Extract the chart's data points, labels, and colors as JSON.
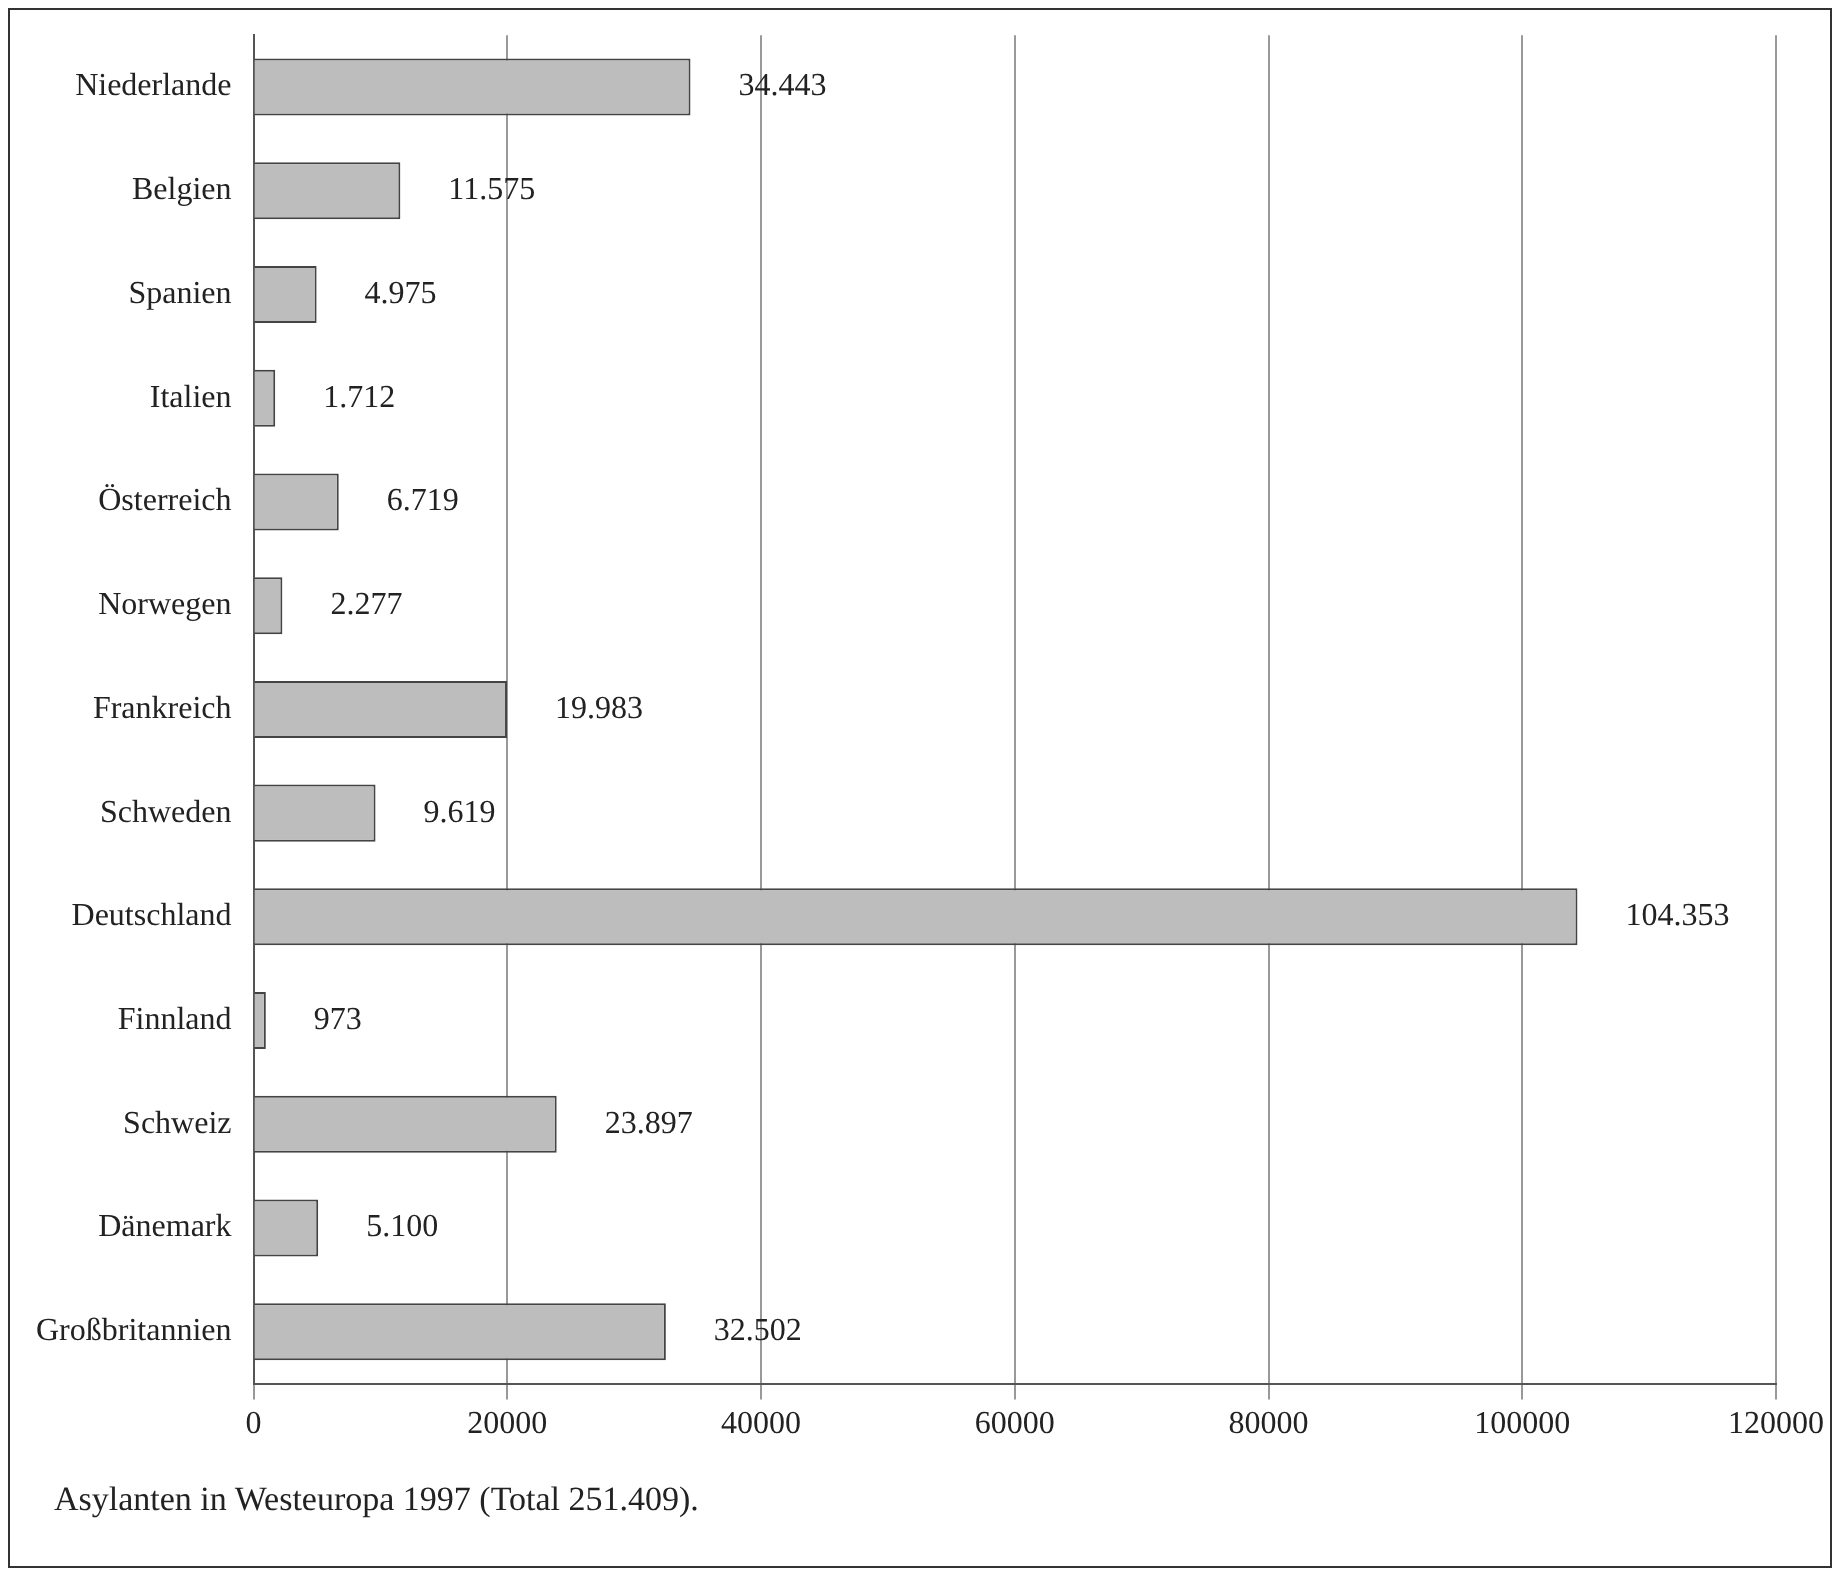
{
  "chart_data": {
    "type": "bar",
    "orientation": "horizontal",
    "categories": [
      "Niederlande",
      "Belgien",
      "Spanien",
      "Italien",
      "Österreich",
      "Norwegen",
      "Frankreich",
      "Schweden",
      "Deutschland",
      "Finnland",
      "Schweiz",
      "Dänemark",
      "Großbritannien"
    ],
    "values": [
      34443,
      11575,
      4975,
      1712,
      6719,
      2277,
      19983,
      9619,
      104353,
      973,
      23897,
      5100,
      32502
    ],
    "value_labels": [
      "34.443",
      "11.575",
      "4.975",
      "1.712",
      "6.719",
      "2.277",
      "19.983",
      "9.619",
      "104.353",
      "973",
      "23.897",
      "5.100",
      "32.502"
    ],
    "color": "#bdbdbd",
    "xlim": [
      0,
      120000
    ],
    "xticks": [
      0,
      20000,
      40000,
      60000,
      80000,
      100000,
      120000
    ],
    "grid": "x",
    "legend": false,
    "annotations": [
      "Asylanten in Westeuropa 1997 (Total 251.409)."
    ]
  }
}
